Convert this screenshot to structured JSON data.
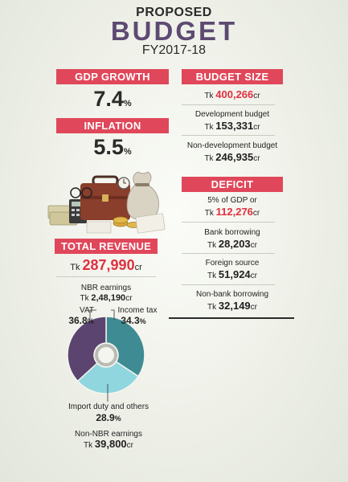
{
  "header": {
    "line1": "PROPOSED",
    "line2": "BUDGET",
    "line3": "FY2017-18"
  },
  "gdp": {
    "label": "GDP GROWTH",
    "value": "7.4",
    "unit": "%"
  },
  "inflation": {
    "label": "INFLATION",
    "value": "5.5",
    "unit": "%"
  },
  "budget_size": {
    "label": "BUDGET SIZE",
    "total": {
      "prefix": "Tk",
      "value": "400,266",
      "suffix": "cr"
    },
    "items": [
      {
        "label": "Development budget",
        "prefix": "Tk",
        "value": "153,331",
        "suffix": "cr"
      },
      {
        "label": "Non-development budget",
        "prefix": "Tk",
        "value": "246,935",
        "suffix": "cr"
      }
    ]
  },
  "deficit": {
    "label": "DEFICIT",
    "items": [
      {
        "label": "5% of GDP or",
        "prefix": "Tk",
        "value": "112,276",
        "suffix": "cr"
      },
      {
        "label": "Bank borrowing",
        "prefix": "Tk",
        "value": "28,203",
        "suffix": "cr"
      },
      {
        "label": "Foreign source",
        "prefix": "Tk",
        "value": "51,924",
        "suffix": "cr"
      },
      {
        "label": "Non-bank borrowing",
        "prefix": "Tk",
        "value": "32,149",
        "suffix": "cr"
      }
    ]
  },
  "revenue": {
    "label": "TOTAL REVENUE",
    "prefix": "Tk",
    "value": "287,990",
    "suffix": "cr",
    "nbr": {
      "label": "NBR earnings",
      "prefix": "Tk",
      "value": "2,48,190",
      "suffix": "cr"
    },
    "non_nbr": {
      "label": "Non-NBR earnings",
      "prefix": "Tk",
      "value": "39,800",
      "suffix": "cr"
    }
  },
  "illustration": {
    "icon": "briefcase-money-illustration"
  },
  "colors": {
    "accent": "#e0475a",
    "title_purple": "#5d4a72",
    "income_tax": "#3f8b93",
    "import_duty": "#8fd6df",
    "vat": "#5b4570"
  },
  "chart_data": {
    "type": "pie",
    "title": "",
    "categories": [
      "Income tax",
      "Import duty and others",
      "VAT"
    ],
    "values": [
      34.3,
      28.9,
      36.8
    ],
    "unit": "%",
    "legend": "none",
    "labels_display": [
      "34.3",
      "28.9",
      "36.8"
    ]
  }
}
